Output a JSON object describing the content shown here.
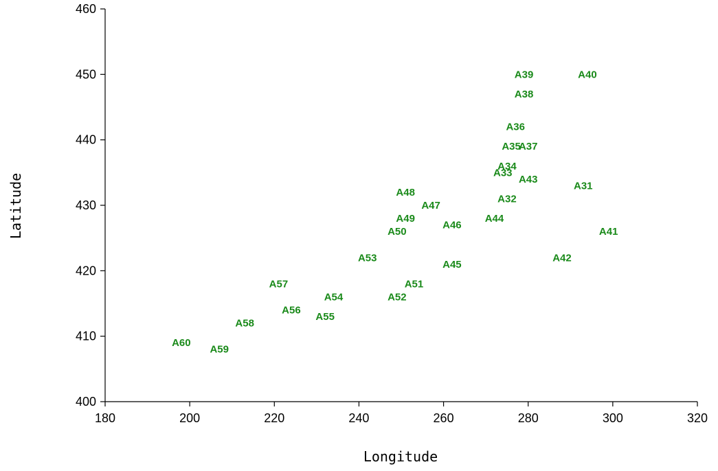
{
  "chart_data": {
    "type": "scatter",
    "title": "",
    "xlabel": "Longitude",
    "ylabel": "Latitude",
    "xlim": [
      180,
      320
    ],
    "ylim": [
      400,
      460
    ],
    "xticks": [
      "180",
      "200",
      "220",
      "240",
      "260",
      "280",
      "300",
      "320"
    ],
    "yticks": [
      "400",
      "410",
      "420",
      "430",
      "440",
      "450",
      "460"
    ],
    "grid": false,
    "marker_style": "text labels only",
    "label_color": "#1a8a1a",
    "points": [
      {
        "label": "A31",
        "x": 293,
        "y": 433
      },
      {
        "label": "A32",
        "x": 275,
        "y": 431
      },
      {
        "label": "A33",
        "x": 274,
        "y": 435
      },
      {
        "label": "A34",
        "x": 275,
        "y": 436
      },
      {
        "label": "A35",
        "x": 276,
        "y": 439
      },
      {
        "label": "A36",
        "x": 277,
        "y": 442
      },
      {
        "label": "A37",
        "x": 280,
        "y": 439
      },
      {
        "label": "A38",
        "x": 279,
        "y": 447
      },
      {
        "label": "A39",
        "x": 279,
        "y": 450
      },
      {
        "label": "A40",
        "x": 294,
        "y": 450
      },
      {
        "label": "A41",
        "x": 299,
        "y": 426
      },
      {
        "label": "A42",
        "x": 288,
        "y": 422
      },
      {
        "label": "A43",
        "x": 280,
        "y": 434
      },
      {
        "label": "A44",
        "x": 272,
        "y": 428
      },
      {
        "label": "A45",
        "x": 262,
        "y": 421
      },
      {
        "label": "A46",
        "x": 262,
        "y": 427
      },
      {
        "label": "A47",
        "x": 257,
        "y": 430
      },
      {
        "label": "A48",
        "x": 251,
        "y": 432
      },
      {
        "label": "A49",
        "x": 251,
        "y": 428
      },
      {
        "label": "A50",
        "x": 249,
        "y": 426
      },
      {
        "label": "A51",
        "x": 253,
        "y": 418
      },
      {
        "label": "A52",
        "x": 249,
        "y": 416
      },
      {
        "label": "A53",
        "x": 242,
        "y": 422
      },
      {
        "label": "A54",
        "x": 234,
        "y": 416
      },
      {
        "label": "A55",
        "x": 232,
        "y": 413
      },
      {
        "label": "A56",
        "x": 224,
        "y": 414
      },
      {
        "label": "A57",
        "x": 221,
        "y": 418
      },
      {
        "label": "A58",
        "x": 213,
        "y": 412
      },
      {
        "label": "A59",
        "x": 207,
        "y": 408
      },
      {
        "label": "A60",
        "x": 198,
        "y": 409
      }
    ]
  }
}
